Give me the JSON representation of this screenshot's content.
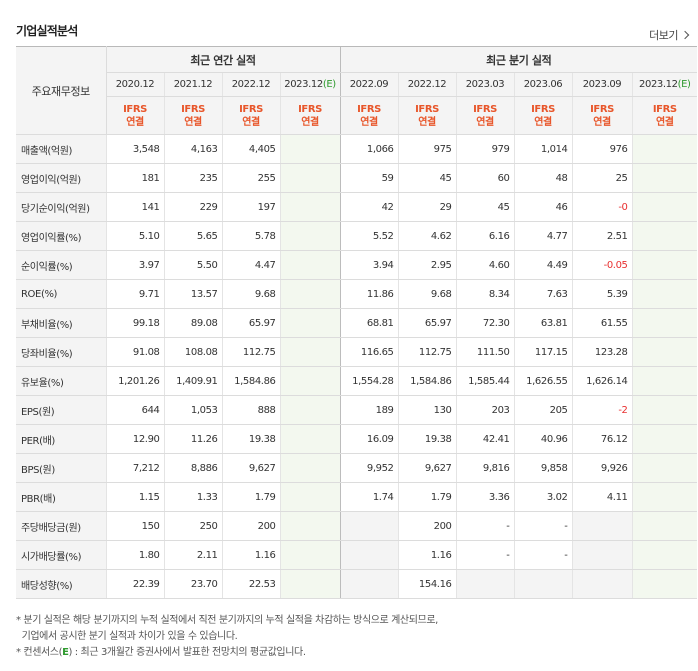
{
  "title": "기업실적분석",
  "more_label": "더보기",
  "header": {
    "row_label": "주요재무정보",
    "annual_group": "최근 연간 실적",
    "quarter_group": "최근 분기 실적",
    "annual_dates": [
      "2020.12",
      "2021.12",
      "2022.12",
      "2023.12"
    ],
    "annual_estimate_mark": "(E)",
    "quarter_dates": [
      "2022.09",
      "2022.12",
      "2023.03",
      "2023.06",
      "2023.09",
      "2023.12"
    ],
    "quarter_estimate_mark": "(E)",
    "ifrs_line1": "IFRS",
    "ifrs_line2": "연결"
  },
  "rows": [
    {
      "label": "매출액(억원)",
      "annual": [
        "3,548",
        "4,163",
        "4,405",
        ""
      ],
      "quarter": [
        "1,066",
        "975",
        "979",
        "1,014",
        "976",
        ""
      ]
    },
    {
      "label": "영업이익(억원)",
      "annual": [
        "181",
        "235",
        "255",
        ""
      ],
      "quarter": [
        "59",
        "45",
        "60",
        "48",
        "25",
        ""
      ]
    },
    {
      "label": "당기순이익(억원)",
      "annual": [
        "141",
        "229",
        "197",
        ""
      ],
      "quarter": [
        "42",
        "29",
        "45",
        "46",
        "-0",
        ""
      ]
    },
    {
      "label": "영업이익률(%)",
      "annual": [
        "5.10",
        "5.65",
        "5.78",
        ""
      ],
      "quarter": [
        "5.52",
        "4.62",
        "6.16",
        "4.77",
        "2.51",
        ""
      ]
    },
    {
      "label": "순이익률(%)",
      "annual": [
        "3.97",
        "5.50",
        "4.47",
        ""
      ],
      "quarter": [
        "3.94",
        "2.95",
        "4.60",
        "4.49",
        "-0.05",
        ""
      ]
    },
    {
      "label": "ROE(%)",
      "annual": [
        "9.71",
        "13.57",
        "9.68",
        ""
      ],
      "quarter": [
        "11.86",
        "9.68",
        "8.34",
        "7.63",
        "5.39",
        ""
      ]
    },
    {
      "label": "부채비율(%)",
      "annual": [
        "99.18",
        "89.08",
        "65.97",
        ""
      ],
      "quarter": [
        "68.81",
        "65.97",
        "72.30",
        "63.81",
        "61.55",
        ""
      ]
    },
    {
      "label": "당좌비율(%)",
      "annual": [
        "91.08",
        "108.08",
        "112.75",
        ""
      ],
      "quarter": [
        "116.65",
        "112.75",
        "111.50",
        "117.15",
        "123.28",
        ""
      ]
    },
    {
      "label": "유보율(%)",
      "annual": [
        "1,201.26",
        "1,409.91",
        "1,584.86",
        ""
      ],
      "quarter": [
        "1,554.28",
        "1,584.86",
        "1,585.44",
        "1,626.55",
        "1,626.14",
        ""
      ]
    },
    {
      "label": "EPS(원)",
      "annual": [
        "644",
        "1,053",
        "888",
        ""
      ],
      "quarter": [
        "189",
        "130",
        "203",
        "205",
        "-2",
        ""
      ]
    },
    {
      "label": "PER(배)",
      "annual": [
        "12.90",
        "11.26",
        "19.38",
        ""
      ],
      "quarter": [
        "16.09",
        "19.38",
        "42.41",
        "40.96",
        "76.12",
        ""
      ]
    },
    {
      "label": "BPS(원)",
      "annual": [
        "7,212",
        "8,886",
        "9,627",
        ""
      ],
      "quarter": [
        "9,952",
        "9,627",
        "9,816",
        "9,858",
        "9,926",
        ""
      ]
    },
    {
      "label": "PBR(배)",
      "annual": [
        "1.15",
        "1.33",
        "1.79",
        ""
      ],
      "quarter": [
        "1.74",
        "1.79",
        "3.36",
        "3.02",
        "4.11",
        ""
      ]
    },
    {
      "label": "주당배당금(원)",
      "annual": [
        "150",
        "250",
        "200",
        ""
      ],
      "quarter": [
        "",
        "200",
        "-",
        "-",
        "",
        ""
      ]
    },
    {
      "label": "시가배당률(%)",
      "annual": [
        "1.80",
        "2.11",
        "1.16",
        ""
      ],
      "quarter": [
        "",
        "1.16",
        "-",
        "-",
        "",
        ""
      ]
    },
    {
      "label": "배당성향(%)",
      "annual": [
        "22.39",
        "23.70",
        "22.53",
        ""
      ],
      "quarter": [
        "",
        "154.16",
        "",
        "",
        "",
        ""
      ]
    }
  ],
  "notes": {
    "line1": "분기 실적은 해당 분기까지의 누적 실적에서 직전 분기까지의 누적 실적을 차감하는 방식으로 계산되므로,",
    "line2": "기업에서 공시한 분기 실적과 차이가 있을 수 있습니다.",
    "line3_prefix": "컨센서스(",
    "line3_mark": "E",
    "line3_suffix": ") : 최근 3개월간 증권사에서 발표한 전망치의 평균값입니다."
  },
  "colors": {
    "ifrs": "#e8562a",
    "negative": "#e83030",
    "estimate_mark": "#2e9a2e",
    "estimate_bg": "#f3f8ef",
    "header_bg": "#f4f4f4"
  }
}
